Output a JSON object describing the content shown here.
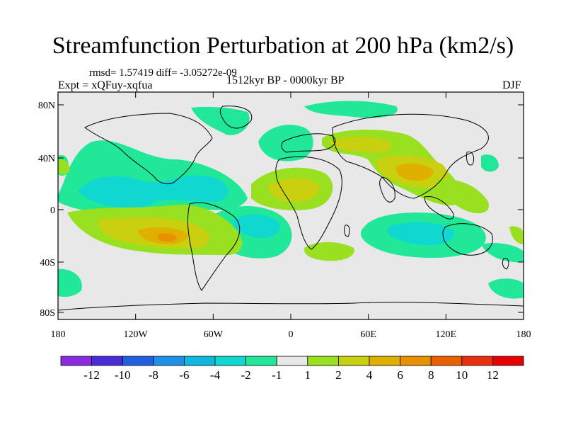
{
  "title": "Streamfunction Perturbation at 200 hPa (km2/s)",
  "stats_line": "rmsd= 1.57419 diff= -3.05272e-09",
  "experiment_line": "Expt = xQFuy-xqfua",
  "period_line": "1512kyr BP - 0000kyr BP",
  "season": "DJF",
  "lat_labels": [
    "80N",
    "40N",
    "0",
    "40S",
    "80S"
  ],
  "lon_labels": [
    "180",
    "120W",
    "60W",
    "0",
    "60E",
    "120E",
    "180"
  ],
  "colorbar": {
    "labels": [
      "-12",
      "-10",
      "-8",
      "-6",
      "-4",
      "-2",
      "-1",
      "1",
      "2",
      "4",
      "6",
      "8",
      "10",
      "12"
    ],
    "colors": [
      "#8a2be2",
      "#4b2bd8",
      "#1f5fe0",
      "#1e90e8",
      "#10b8e0",
      "#10d8d0",
      "#20e898",
      "#e8e8e8",
      "#98e020",
      "#c8d010",
      "#e0b000",
      "#e89000",
      "#e86000",
      "#e83010",
      "#e80000"
    ]
  },
  "field_colors": {
    "land_bg": "#e8e8e8",
    "pos1": "#98e020",
    "pos2": "#c8d010",
    "pos3": "#e0b000",
    "pos4": "#e89000",
    "neg1": "#20e898",
    "neg2": "#10d8d0",
    "neg3": "#10b8e0"
  }
}
